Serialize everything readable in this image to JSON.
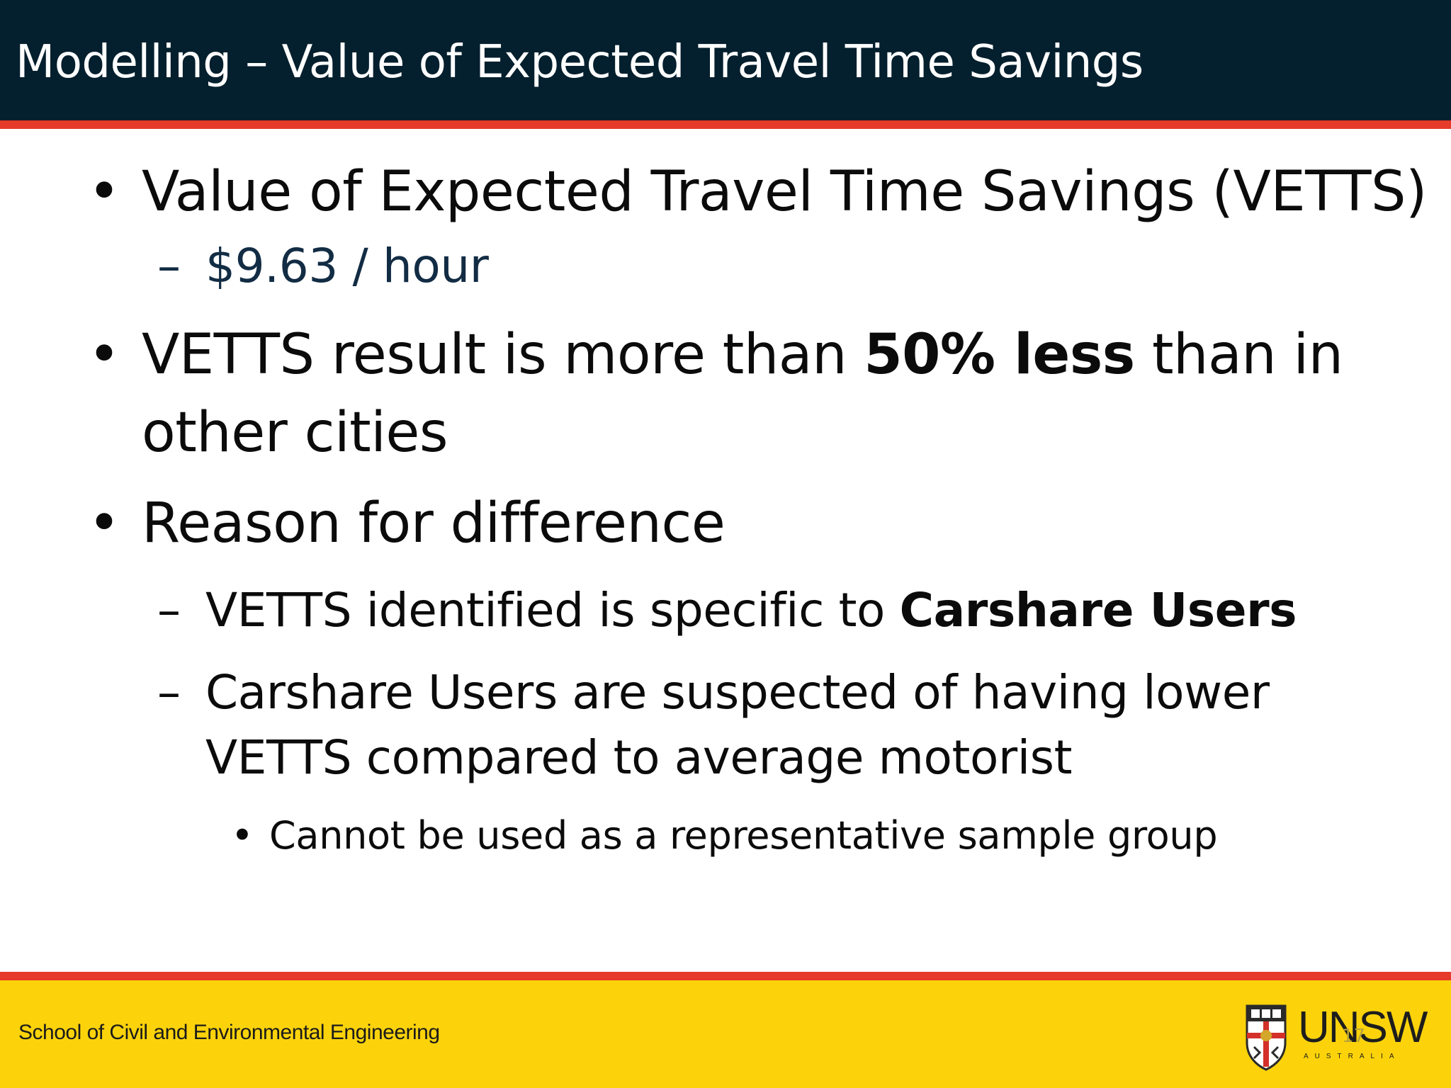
{
  "slide": {
    "title": "Modelling – Value of Expected Travel Time Savings",
    "page_number": "17"
  },
  "content": {
    "b1": {
      "bullet": "•",
      "text": "Value of Expected Travel Time Savings (VETTS)"
    },
    "b1_1": {
      "dash": "–",
      "text": "$9.63 / hour"
    },
    "b2": {
      "bullet": "•",
      "pre": "VETTS result is more than ",
      "bold": "50% less",
      "post": " than in",
      "line2": "other cities"
    },
    "b3": {
      "bullet": "•",
      "text": "Reason for difference"
    },
    "b3_1": {
      "dash": "–",
      "pre": "VETTS identified is specific to ",
      "bold": "Carshare Users"
    },
    "b3_2": {
      "dash": "–",
      "line1": "Carshare Users are suspected of having lower",
      "line2": "VETTS compared to average motorist"
    },
    "b3_2_1": {
      "bullet": "•",
      "text": "Cannot be used as a representative sample group"
    }
  },
  "footer": {
    "school": "School of Civil and Environmental Engineering",
    "logo_text": "UNSW",
    "logo_subtext": "AUSTRALIA"
  },
  "colors": {
    "header_bg": "#041f2d",
    "stripe": "#e63a2a",
    "footer_bg": "#fcd30a"
  },
  "icons": {
    "logo": "unsw-crest-icon"
  }
}
